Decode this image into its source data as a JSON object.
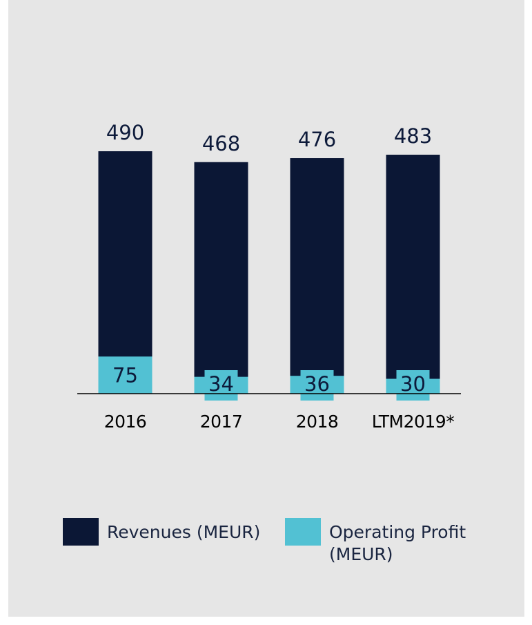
{
  "chart_data": {
    "type": "bar",
    "categories": [
      "2016",
      "2017",
      "2018",
      "LTM2019*"
    ],
    "series": [
      {
        "name": "Revenues (MEUR)",
        "color": "#0b1735",
        "values": [
          490,
          468,
          476,
          483
        ]
      },
      {
        "name": "Operating Profit (MEUR)",
        "color": "#52c1d3",
        "values": [
          75,
          34,
          36,
          30
        ]
      }
    ]
  }
}
